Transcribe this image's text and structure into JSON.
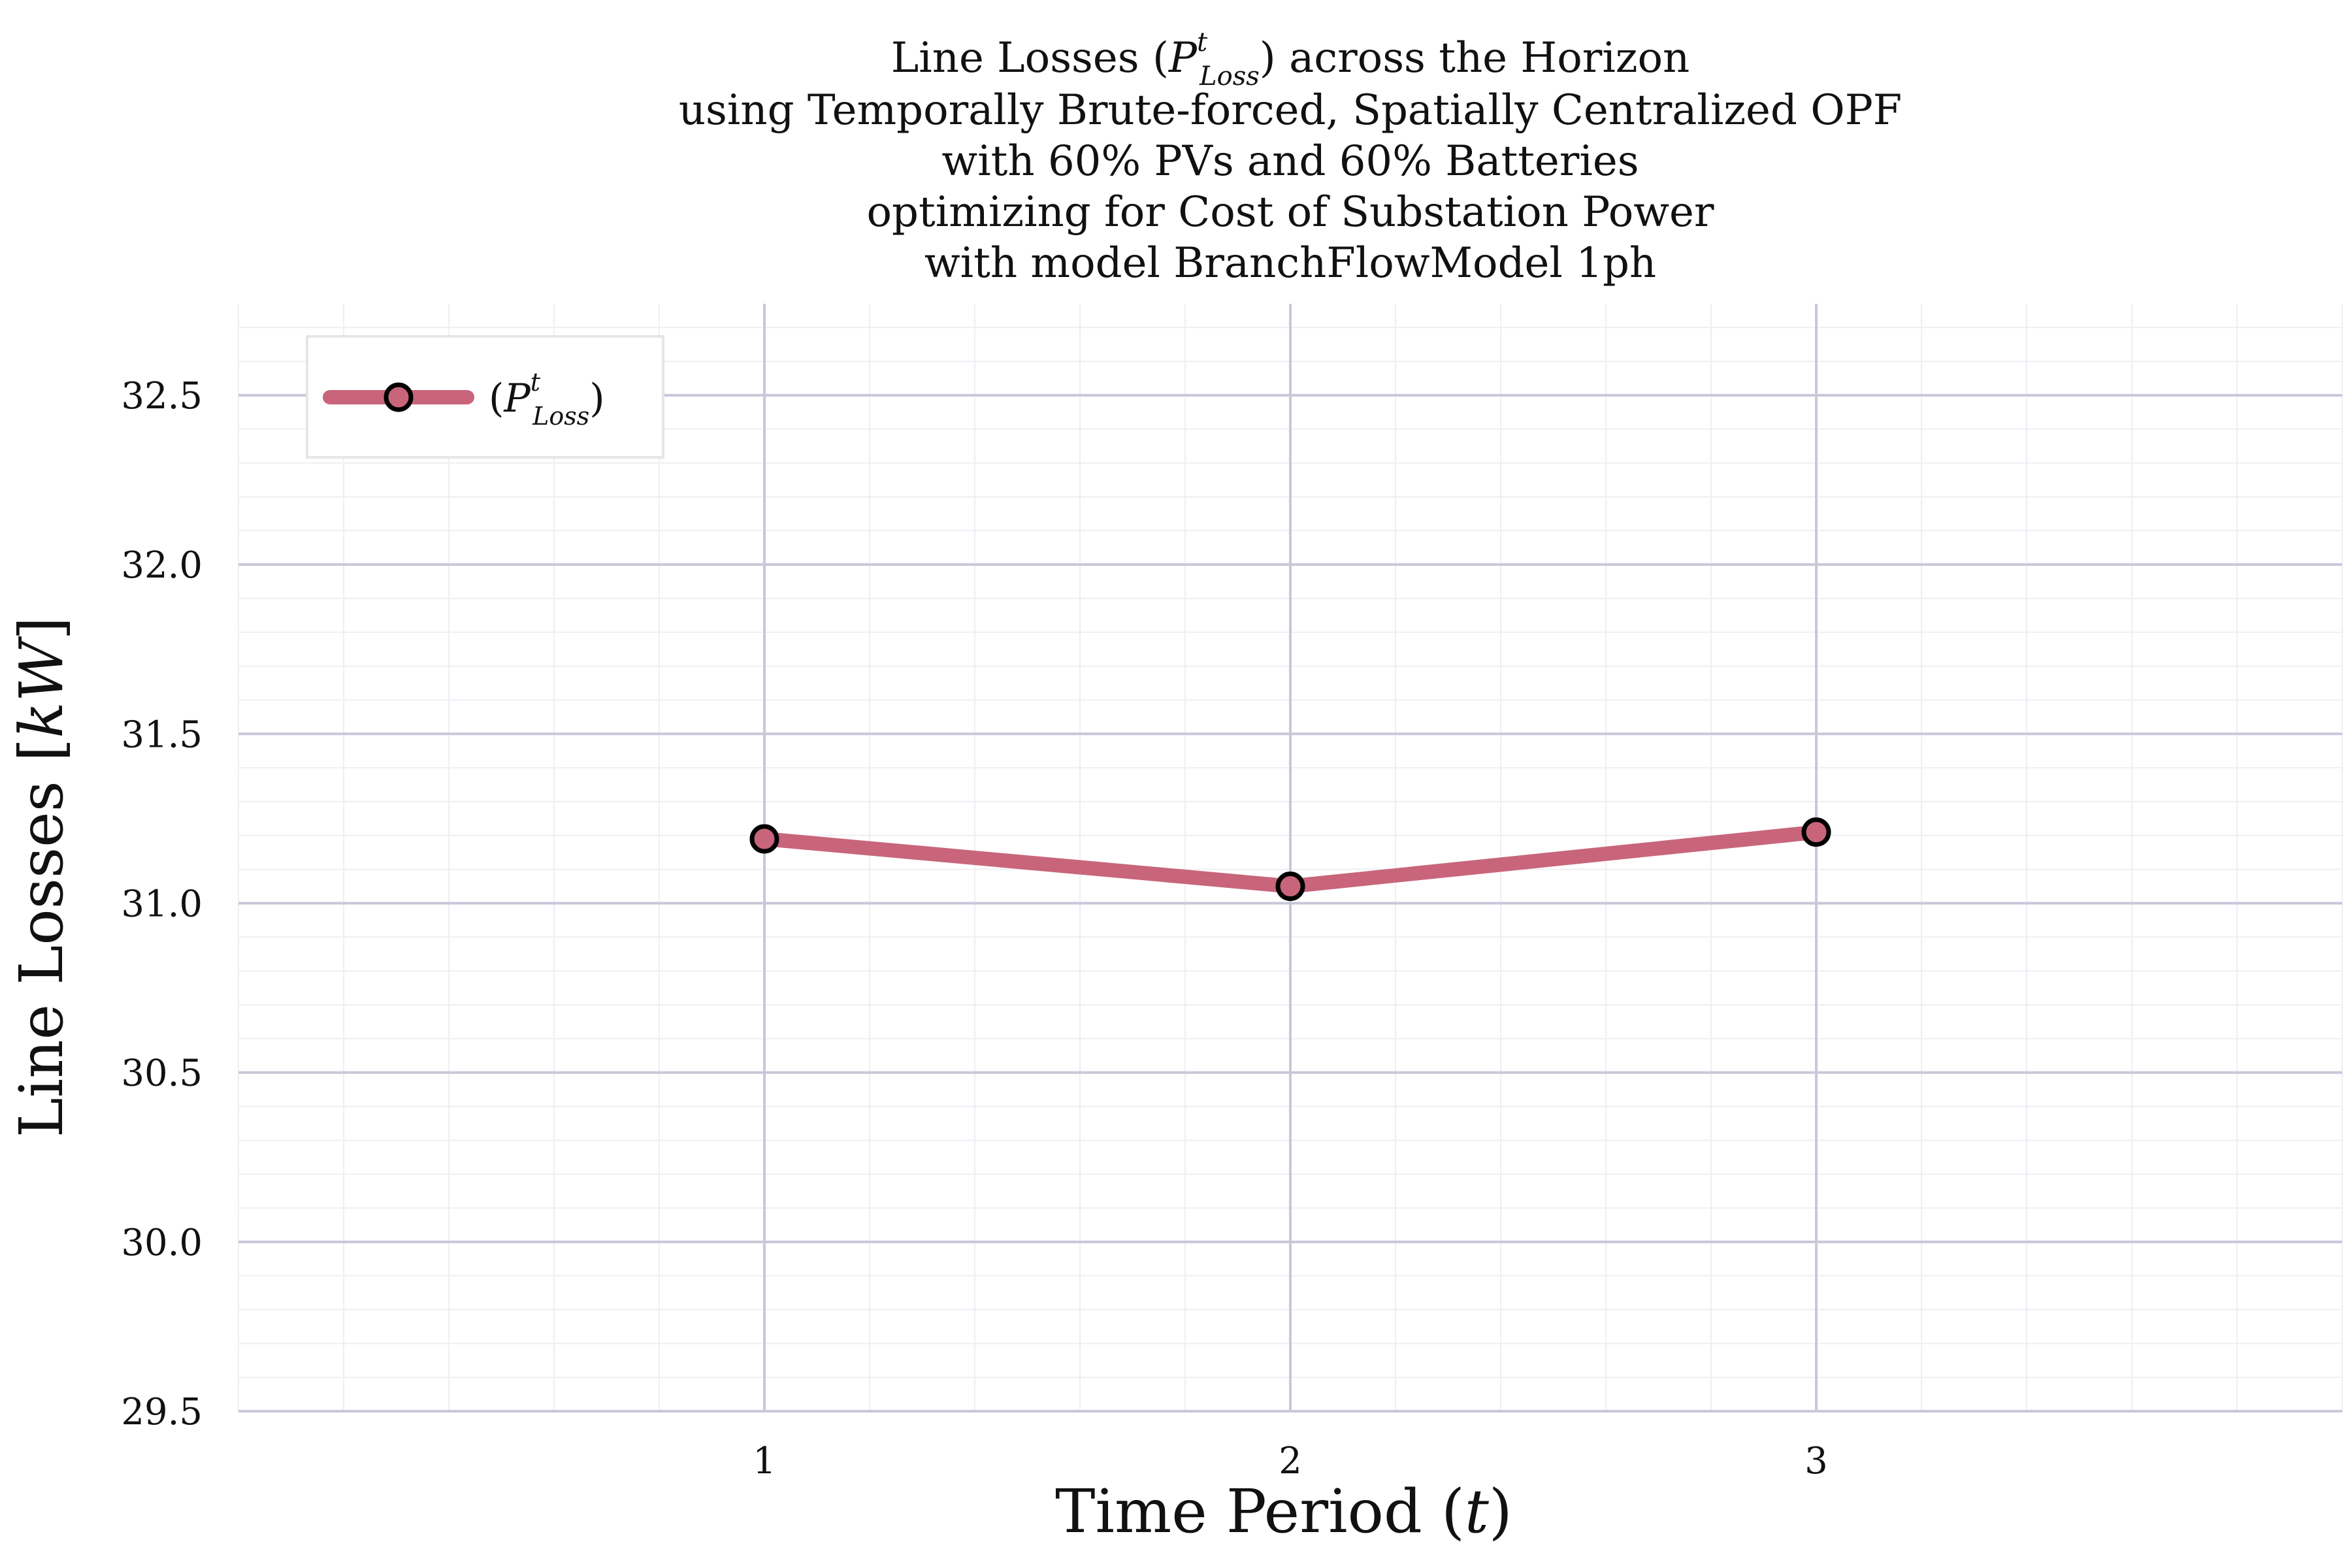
{
  "chart_data": {
    "type": "line",
    "title_lines": [
      "Line Losses (P",
      "using Temporally Brute-forced, Spatially Centralized OPF",
      "with 60% PVs and 60% Batteries",
      "optimizing for Cost of Substation Power",
      "with model BranchFlowModel 1ph"
    ],
    "title_first_line": {
      "prefix": "Line Losses (",
      "symbol": "P",
      "superscript": "t",
      "subscript": "Loss",
      "suffix": ") across the Horizon"
    },
    "xlabel": {
      "prefix": "Time Period (",
      "symbol": "t",
      "suffix": ")"
    },
    "ylabel": {
      "prefix": "Line Losses [",
      "symbol": "kW",
      "suffix": "]"
    },
    "x": [
      1,
      2,
      3
    ],
    "xticks": [
      "1",
      "2",
      "3"
    ],
    "xlim": [
      0,
      4
    ],
    "yticks": [
      "29.5",
      "30.0",
      "30.5",
      "31.0",
      "31.5",
      "32.0",
      "32.5"
    ],
    "ytick_values": [
      29.5,
      30.0,
      30.5,
      31.0,
      31.5,
      32.0,
      32.5
    ],
    "ylim": [
      29.5,
      32.77
    ],
    "grid": true,
    "legend_position": "top-left",
    "series": [
      {
        "legend": {
          "open": "(",
          "symbol": "P",
          "superscript": "t",
          "subscript": "Loss",
          "close": ")"
        },
        "values": [
          31.19,
          31.05,
          31.21
        ],
        "color": "#c8657a",
        "marker_edge": "#000000"
      }
    ],
    "colors": {
      "major_grid": "#c9c7d9",
      "minor_grid": "#efeef4",
      "line": "#c8657a",
      "marker_edge": "#000000"
    }
  }
}
